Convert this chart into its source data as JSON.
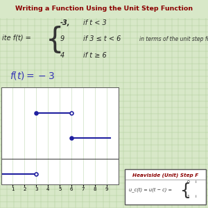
{
  "title": "Writing a Function Using the Unit Step Function",
  "title_color": "#8B0000",
  "title_bg": "#F0C040",
  "bg_color": "#D8E8C8",
  "grid_color": "#A8C890",
  "piecewise_prefix": "ite f(t) = ",
  "piecewise_vals": [
    "-3,",
    "9",
    "4"
  ],
  "piecewise_conds": [
    "if t < 3",
    "if 3 ≤ t < 6",
    "if t ≥ 6"
  ],
  "piecewise_extra": "in terms of the unit step fun",
  "handwritten_text": "f(t) = -3",
  "handwritten_color": "#3535B5",
  "plot_xlim": [
    0,
    10
  ],
  "plot_ylim": [
    -5,
    14
  ],
  "plot_xticks": [
    1,
    2,
    3,
    4,
    5,
    6,
    7,
    8,
    9
  ],
  "segment_color": "#2020A0",
  "heaviside_title": "Heaviside (Unit) Step F",
  "heaviside_eq": "u_c(t) = u(t − c) =",
  "heaviside_color": "#8B0000",
  "hbox_bg": "#FFFFFF",
  "hbox_border": "#555555"
}
